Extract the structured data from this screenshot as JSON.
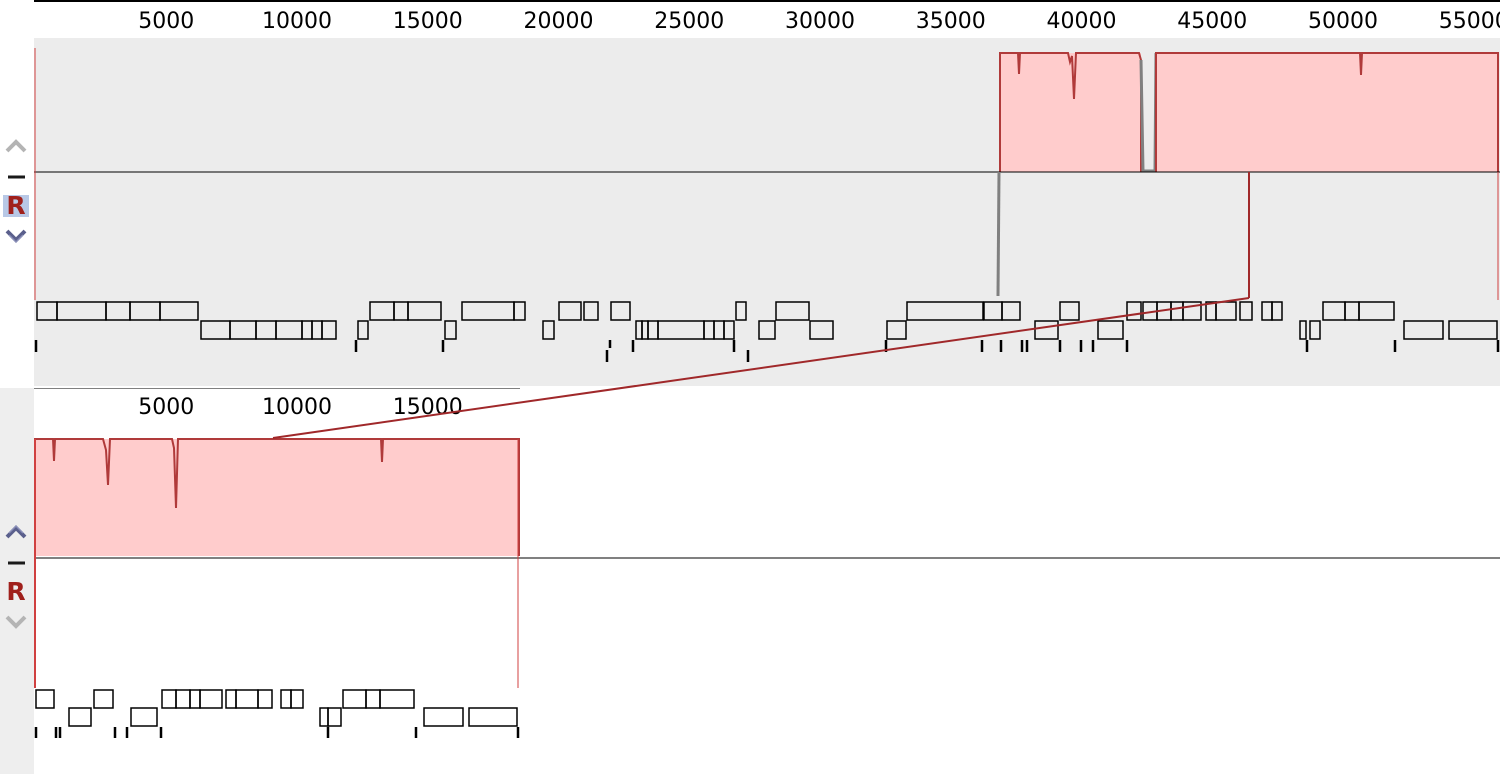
{
  "colors": {
    "similarity_fill": "#ffcccc",
    "similarity_stroke": "#b03a3a",
    "connector": "#a0282a",
    "gap": "#808080",
    "control_arrow_active": "#5a5f8c",
    "control_arrow_inactive": "#b4b4b4",
    "r_button": "#a0201c",
    "r_button_selected_bg": "#b8c8e6"
  },
  "icons": {
    "up": "chevron-up-icon",
    "minus": "minus-icon",
    "reverse": "reverse-r-icon",
    "down": "chevron-down-icon"
  },
  "genomes": [
    {
      "id": "top",
      "length": 56000,
      "ruler_ticks": [
        "5000",
        "10000",
        "15000",
        "20000",
        "25000",
        "30000",
        "35000",
        "40000",
        "45000",
        "50000",
        "55000"
      ],
      "ruler_tick_values": [
        5000,
        10000,
        15000,
        20000,
        25000,
        30000,
        35000,
        40000,
        45000,
        50000,
        55000
      ],
      "controls": {
        "up_label": "⌃",
        "minus_label": "—",
        "reverse_label": "R",
        "down_label": "⌄",
        "reverse_selected": true
      },
      "lcb_blocks": [
        {
          "start": 36950,
          "end": 42500
        },
        {
          "start": 43050,
          "end": 56000
        }
      ]
    },
    {
      "id": "bottom",
      "length": 18500,
      "ruler_ticks": [
        "5000",
        "10000",
        "15000"
      ],
      "ruler_tick_values": [
        5000,
        10000,
        15000
      ],
      "controls": {
        "up_label": "⌃",
        "minus_label": "—",
        "reverse_label": "R",
        "down_label": "⌄",
        "reverse_selected": false
      },
      "lcb_blocks": [
        {
          "start": 0,
          "end": 18500
        }
      ]
    }
  ]
}
